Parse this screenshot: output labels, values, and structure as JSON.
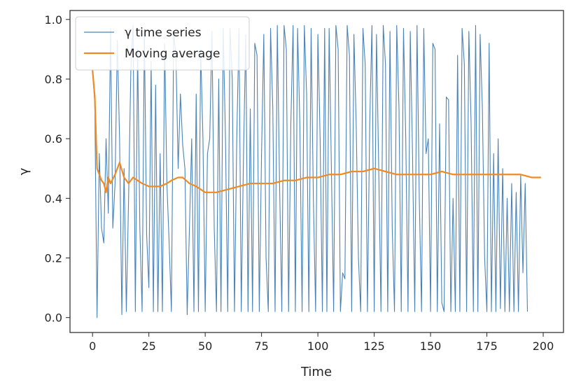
{
  "chart_data": {
    "type": "line",
    "xlabel": "Time",
    "ylabel": "γ",
    "xlim": [
      -10,
      209
    ],
    "ylim": [
      -0.05,
      1.03
    ],
    "xticks": [
      0,
      25,
      50,
      75,
      100,
      125,
      150,
      175,
      200
    ],
    "yticks": [
      0.0,
      0.2,
      0.4,
      0.6,
      0.8,
      1.0
    ],
    "xtick_labels": [
      "0",
      "25",
      "50",
      "75",
      "100",
      "125",
      "150",
      "175",
      "200"
    ],
    "ytick_labels": [
      "0.0",
      "0.2",
      "0.4",
      "0.6",
      "0.8",
      "1.0"
    ],
    "legend_position": "top-left",
    "grid": false,
    "series": [
      {
        "name": "γ time series",
        "color": "#4a83b8",
        "x_start": 0,
        "x_step": 1,
        "values": [
          0.83,
          0.72,
          0.0,
          0.55,
          0.3,
          0.25,
          0.6,
          0.35,
          0.97,
          0.3,
          0.45,
          0.93,
          0.6,
          0.01,
          0.5,
          0.02,
          0.4,
          0.83,
          0.98,
          0.02,
          0.9,
          0.3,
          0.02,
          0.97,
          0.28,
          0.1,
          0.86,
          0.02,
          0.78,
          0.02,
          0.55,
          0.02,
          0.92,
          0.45,
          0.25,
          0.02,
          0.95,
          0.88,
          0.5,
          0.75,
          0.58,
          0.5,
          0.01,
          0.3,
          0.6,
          0.02,
          0.75,
          0.02,
          0.9,
          0.6,
          0.02,
          0.55,
          0.6,
          0.96,
          0.3,
          0.02,
          0.8,
          0.02,
          0.97,
          0.6,
          0.02,
          0.97,
          0.8,
          0.02,
          0.6,
          0.97,
          0.02,
          0.55,
          0.95,
          0.02,
          0.7,
          0.02,
          0.92,
          0.88,
          0.02,
          0.55,
          0.95,
          0.2,
          0.02,
          0.97,
          0.7,
          0.02,
          0.98,
          0.45,
          0.02,
          0.98,
          0.9,
          0.02,
          0.65,
          0.98,
          0.02,
          0.97,
          0.65,
          0.02,
          0.98,
          0.75,
          0.02,
          0.97,
          0.4,
          0.02,
          0.95,
          0.6,
          0.02,
          0.97,
          0.02,
          0.97,
          0.5,
          0.02,
          0.98,
          0.9,
          0.02,
          0.15,
          0.13,
          0.98,
          0.88,
          0.02,
          0.95,
          0.65,
          0.2,
          0.02,
          0.97,
          0.85,
          0.02,
          0.65,
          0.98,
          0.02,
          0.95,
          0.5,
          0.02,
          0.98,
          0.85,
          0.02,
          0.96,
          0.3,
          0.02,
          0.98,
          0.7,
          0.02,
          0.97,
          0.6,
          0.02,
          0.96,
          0.55,
          0.02,
          0.98,
          0.4,
          0.02,
          0.97,
          0.55,
          0.6,
          0.02,
          0.92,
          0.9,
          0.02,
          0.65,
          0.05,
          0.02,
          0.74,
          0.73,
          0.02,
          0.4,
          0.02,
          0.88,
          0.02,
          0.97,
          0.85,
          0.02,
          0.96,
          0.65,
          0.02,
          0.98,
          0.02,
          0.95,
          0.7,
          0.2,
          0.02,
          0.92,
          0.02,
          0.55,
          0.02,
          0.6,
          0.03,
          0.5,
          0.02,
          0.4,
          0.02,
          0.45,
          0.02,
          0.42,
          0.02,
          0.48,
          0.15,
          0.45,
          0.02
        ]
      },
      {
        "name": "Moving average",
        "color": "#f08a24",
        "points": [
          [
            0,
            0.83
          ],
          [
            1,
            0.74
          ],
          [
            2,
            0.5
          ],
          [
            3,
            0.48
          ],
          [
            4,
            0.46
          ],
          [
            5,
            0.45
          ],
          [
            6,
            0.42
          ],
          [
            7,
            0.47
          ],
          [
            8,
            0.45
          ],
          [
            10,
            0.48
          ],
          [
            12,
            0.52
          ],
          [
            14,
            0.47
          ],
          [
            16,
            0.45
          ],
          [
            18,
            0.47
          ],
          [
            20,
            0.46
          ],
          [
            22,
            0.45
          ],
          [
            25,
            0.44
          ],
          [
            28,
            0.44
          ],
          [
            30,
            0.44
          ],
          [
            33,
            0.45
          ],
          [
            35,
            0.46
          ],
          [
            38,
            0.47
          ],
          [
            40,
            0.47
          ],
          [
            43,
            0.45
          ],
          [
            46,
            0.44
          ],
          [
            48,
            0.43
          ],
          [
            50,
            0.42
          ],
          [
            55,
            0.42
          ],
          [
            60,
            0.43
          ],
          [
            65,
            0.44
          ],
          [
            70,
            0.45
          ],
          [
            75,
            0.45
          ],
          [
            80,
            0.45
          ],
          [
            85,
            0.46
          ],
          [
            90,
            0.46
          ],
          [
            95,
            0.47
          ],
          [
            100,
            0.47
          ],
          [
            105,
            0.48
          ],
          [
            110,
            0.48
          ],
          [
            115,
            0.49
          ],
          [
            120,
            0.49
          ],
          [
            125,
            0.5
          ],
          [
            130,
            0.49
          ],
          [
            135,
            0.48
          ],
          [
            140,
            0.48
          ],
          [
            145,
            0.48
          ],
          [
            150,
            0.48
          ],
          [
            155,
            0.49
          ],
          [
            160,
            0.48
          ],
          [
            165,
            0.48
          ],
          [
            170,
            0.48
          ],
          [
            175,
            0.48
          ],
          [
            180,
            0.48
          ],
          [
            185,
            0.48
          ],
          [
            190,
            0.48
          ],
          [
            195,
            0.47
          ],
          [
            199,
            0.47
          ]
        ]
      }
    ]
  }
}
